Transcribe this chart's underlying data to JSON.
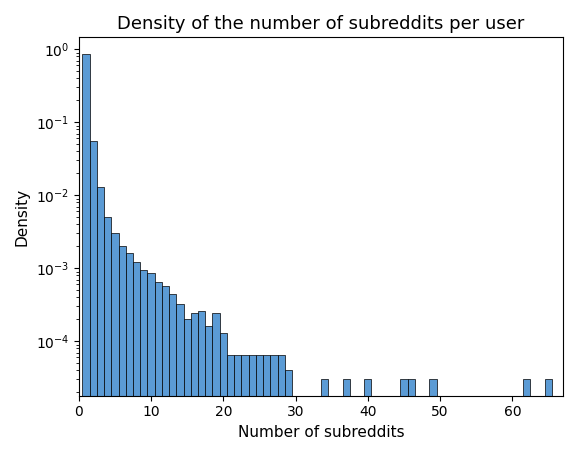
{
  "title": "Density of the number of subreddits per user",
  "xlabel": "Number of subreddits",
  "ylabel": "Density",
  "bar_color": "#5b9bd5",
  "bar_edgecolor": "#000000",
  "bar_linewidth": 0.5,
  "bar_width": 1.0,
  "background_color": "#ffffff",
  "xlim": [
    0,
    67
  ],
  "bin_positions": [
    1,
    2,
    3,
    4,
    5,
    6,
    7,
    8,
    9,
    10,
    11,
    12,
    13,
    14,
    15,
    16,
    17,
    18,
    19,
    20,
    21,
    22,
    23,
    24,
    25,
    26,
    27,
    28,
    29,
    34,
    37,
    40,
    45,
    46,
    49,
    62,
    65
  ],
  "densities": [
    0.87,
    0.055,
    0.013,
    0.005,
    0.003,
    0.002,
    0.0016,
    0.0012,
    0.00095,
    0.00085,
    0.00065,
    0.00058,
    0.00045,
    0.00032,
    0.0002,
    0.00024,
    0.00026,
    0.00016,
    0.00024,
    0.00013,
    6.5e-05,
    6.5e-05,
    6.5e-05,
    6.5e-05,
    6.5e-05,
    6.5e-05,
    6.5e-05,
    6.5e-05,
    4e-05,
    3e-05,
    3e-05,
    3e-05,
    3e-05,
    3e-05,
    3e-05,
    3e-05,
    3e-05
  ]
}
